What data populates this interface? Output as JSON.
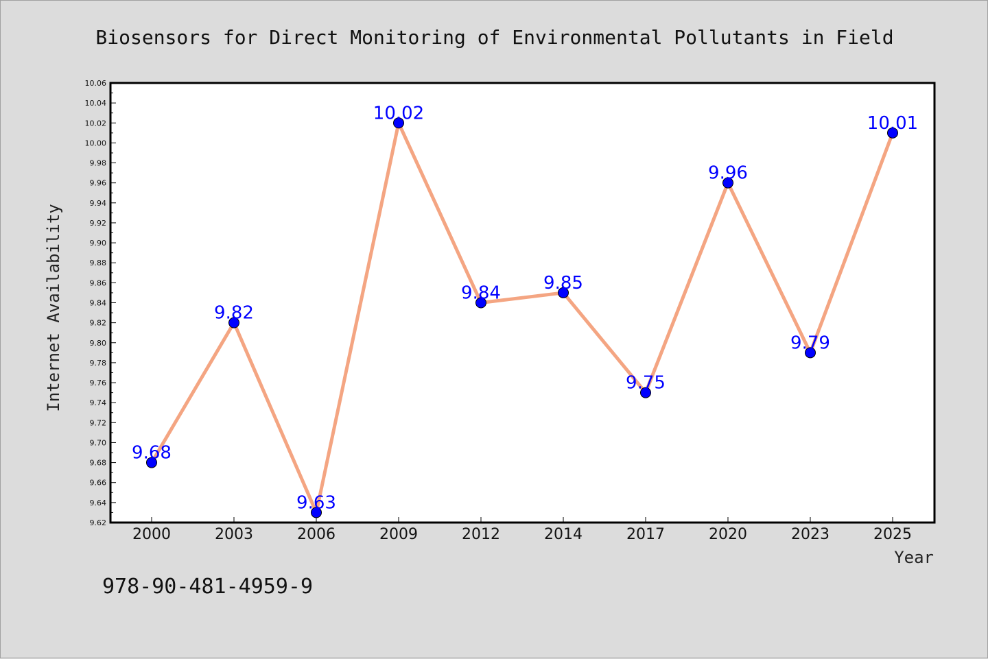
{
  "chart_data": {
    "type": "line",
    "title": "Biosensors for Direct Monitoring of Environmental Pollutants in Field",
    "xlabel": "Year",
    "ylabel": "Internet Availability",
    "categories": [
      "2000",
      "2003",
      "2006",
      "2009",
      "2012",
      "2014",
      "2017",
      "2020",
      "2023",
      "2025"
    ],
    "values": [
      9.68,
      9.82,
      9.63,
      10.02,
      9.84,
      9.85,
      9.75,
      9.96,
      9.79,
      10.01
    ],
    "data_labels": [
      "9.68",
      "9.82",
      "9.63",
      "10.02",
      "9.84",
      "9.85",
      "9.75",
      "9.96",
      "9.79",
      "10.01"
    ],
    "ylim": [
      9.62,
      10.06
    ],
    "yticks": [
      "9.62",
      "9.64",
      "9.66",
      "9.68",
      "9.70",
      "9.72",
      "9.74",
      "9.76",
      "9.78",
      "9.80",
      "9.82",
      "9.84",
      "9.86",
      "9.88",
      "9.90",
      "9.92",
      "9.94",
      "9.96",
      "9.98",
      "10.00",
      "10.02",
      "10.04",
      "10.06"
    ],
    "grid": false,
    "legend": "none",
    "line_color": "#f4a582",
    "marker_color": "#0000ff",
    "label_color": "#0000ff"
  },
  "footer": {
    "isbn": "978-90-481-4959-9"
  },
  "colors": {
    "background": "#dcdcdc",
    "plot_background": "#ffffff"
  }
}
